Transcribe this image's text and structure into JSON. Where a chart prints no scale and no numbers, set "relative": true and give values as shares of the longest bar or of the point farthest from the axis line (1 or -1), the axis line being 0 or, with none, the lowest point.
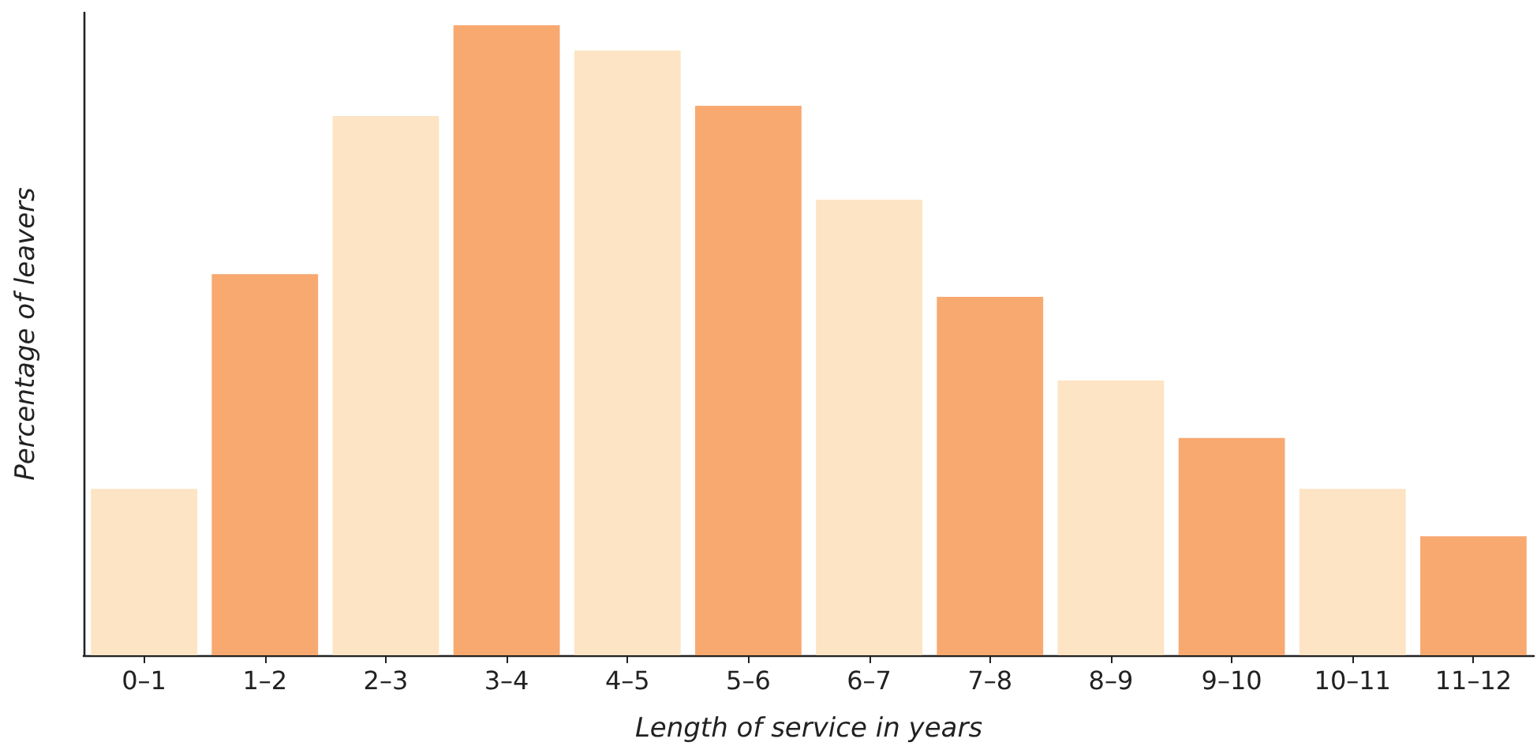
{
  "chart_data": {
    "type": "bar",
    "relative": true,
    "xlabel": "Length of service in years",
    "ylabel": "Percentage of leavers",
    "categories": [
      "0–1",
      "1–2",
      "2–3",
      "3–4",
      "4–5",
      "5–6",
      "6–7",
      "7–8",
      "8–9",
      "9–10",
      "10–11",
      "11–12"
    ],
    "values": [
      0.264,
      0.605,
      0.856,
      1,
      0.96,
      0.872,
      0.723,
      0.569,
      0.436,
      0.345,
      0.264,
      0.189
    ],
    "colors": [
      "#fce4c4",
      "#f8a970",
      "#fce4c4",
      "#f8a970",
      "#fce4c4",
      "#f8a970",
      "#fce4c4",
      "#f8a970",
      "#fce4c4",
      "#f8a970",
      "#fce4c4",
      "#f8a970"
    ]
  }
}
